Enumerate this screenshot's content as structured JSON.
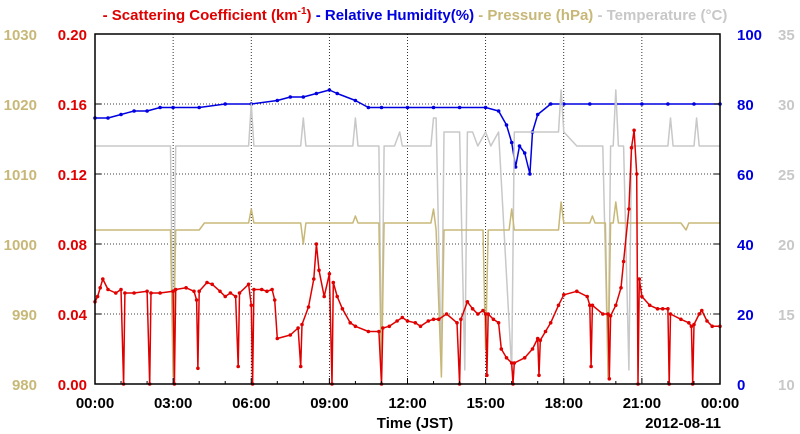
{
  "chart_data": {
    "type": "line",
    "legend": [
      {
        "prefix": "- ",
        "text": "Scattering Coefficient (km",
        "sup": "-1",
        "suffix": ")",
        "color": "#e00000"
      },
      {
        "prefix": " - ",
        "text": "Relative Humidity(%)",
        "color": "#0000e0"
      },
      {
        "prefix": " - ",
        "text": "Pressure (hPa)",
        "color": "#c8b878"
      },
      {
        "prefix": " - ",
        "text": "Temperature (°C)",
        "color": "#c8c8c8"
      }
    ],
    "xlabel": "Time (JST)",
    "date_label": "2012-08-11",
    "x_ticks": [
      "00:00",
      "03:00",
      "06:00",
      "09:00",
      "12:00",
      "15:00",
      "18:00",
      "21:00",
      "00:00"
    ],
    "x_range_hours": [
      0,
      24
    ],
    "grid": true,
    "axes": {
      "pressure": {
        "ticks": [
          "1030",
          "1020",
          "1010",
          "1000",
          "990",
          "980"
        ],
        "range": [
          980,
          1030
        ],
        "color": "#c8b878",
        "side": "left-outer"
      },
      "scattering": {
        "ticks": [
          "0.20",
          "0.16",
          "0.12",
          "0.08",
          "0.04",
          "0.00"
        ],
        "range": [
          0,
          0.2
        ],
        "color": "#e00000",
        "side": "left-inner"
      },
      "humidity": {
        "ticks": [
          "100",
          "80",
          "60",
          "40",
          "20",
          "0"
        ],
        "range": [
          0,
          100
        ],
        "color": "#0000e0",
        "side": "right-inner"
      },
      "temperature": {
        "ticks": [
          "35",
          "30",
          "25",
          "20",
          "15",
          "10"
        ],
        "range": [
          10,
          35
        ],
        "color": "#c8c8c8",
        "side": "right-outer"
      }
    },
    "series": [
      {
        "axis": "humidity",
        "color": "#0000e0",
        "markers": true,
        "points": [
          [
            0,
            76
          ],
          [
            0.5,
            76
          ],
          [
            1,
            77
          ],
          [
            1.5,
            78
          ],
          [
            2,
            78
          ],
          [
            2.5,
            79
          ],
          [
            3,
            79
          ],
          [
            4,
            79
          ],
          [
            5,
            80
          ],
          [
            6,
            80
          ],
          [
            7,
            81
          ],
          [
            7.5,
            82
          ],
          [
            8,
            82
          ],
          [
            8.5,
            83
          ],
          [
            9,
            84
          ],
          [
            9.3,
            83
          ],
          [
            10,
            81
          ],
          [
            10.5,
            79
          ],
          [
            11,
            79
          ],
          [
            12,
            79
          ],
          [
            13,
            79
          ],
          [
            14,
            79
          ],
          [
            15,
            79
          ],
          [
            15.5,
            78
          ],
          [
            15.8,
            74
          ],
          [
            16,
            69
          ],
          [
            16.15,
            62
          ],
          [
            16.3,
            68
          ],
          [
            16.5,
            66
          ],
          [
            16.7,
            60
          ],
          [
            16.8,
            72
          ],
          [
            17,
            77
          ],
          [
            17.5,
            80
          ],
          [
            18,
            80
          ],
          [
            19,
            80
          ],
          [
            20,
            80
          ],
          [
            21,
            80
          ],
          [
            22,
            80
          ],
          [
            23,
            80
          ],
          [
            24,
            80
          ]
        ]
      },
      {
        "axis": "temperature",
        "color": "#c8c8c8",
        "markers": false,
        "points": [
          [
            0,
            27
          ],
          [
            2.9,
            27
          ],
          [
            3,
            11
          ],
          [
            3.1,
            27
          ],
          [
            5.9,
            27
          ],
          [
            6,
            30
          ],
          [
            6.1,
            27
          ],
          [
            7.9,
            27
          ],
          [
            8,
            29
          ],
          [
            8.1,
            27
          ],
          [
            9.9,
            27
          ],
          [
            10,
            29
          ],
          [
            10.1,
            27
          ],
          [
            10.9,
            27
          ],
          [
            11,
            11
          ],
          [
            11.1,
            27
          ],
          [
            11.5,
            27
          ],
          [
            11.7,
            28
          ],
          [
            11.8,
            27
          ],
          [
            12.9,
            27
          ],
          [
            13,
            29
          ],
          [
            13.1,
            29
          ],
          [
            13.3,
            11
          ],
          [
            13.4,
            28
          ],
          [
            14,
            28
          ],
          [
            14.2,
            11
          ],
          [
            14.3,
            28
          ],
          [
            14.5,
            28
          ],
          [
            14.7,
            27
          ],
          [
            15,
            28
          ],
          [
            15.2,
            27
          ],
          [
            15.5,
            28
          ],
          [
            16,
            11
          ],
          [
            16.1,
            28
          ],
          [
            16.5,
            28
          ],
          [
            17,
            28
          ],
          [
            17.5,
            28
          ],
          [
            17.8,
            28
          ],
          [
            17.9,
            31
          ],
          [
            18,
            28
          ],
          [
            18.5,
            27
          ],
          [
            19,
            27
          ],
          [
            19.5,
            27
          ],
          [
            19.7,
            11
          ],
          [
            19.8,
            27
          ],
          [
            19.9,
            27
          ],
          [
            20,
            31
          ],
          [
            20.1,
            27
          ],
          [
            20.3,
            27
          ],
          [
            20.5,
            11
          ],
          [
            20.6,
            27
          ],
          [
            22,
            27
          ],
          [
            22.1,
            29
          ],
          [
            22.2,
            27
          ],
          [
            23,
            27
          ],
          [
            23.1,
            29
          ],
          [
            23.2,
            27
          ],
          [
            24,
            27
          ]
        ]
      },
      {
        "axis": "pressure",
        "color": "#c8b878",
        "markers": false,
        "points": [
          [
            0,
            1002
          ],
          [
            2.9,
            1002
          ],
          [
            3,
            981
          ],
          [
            3.1,
            1002
          ],
          [
            4,
            1002
          ],
          [
            4.2,
            1003
          ],
          [
            5.9,
            1003
          ],
          [
            6,
            1005
          ],
          [
            6.1,
            1003
          ],
          [
            7.9,
            1003
          ],
          [
            8,
            1000
          ],
          [
            8.1,
            1003
          ],
          [
            9.9,
            1003
          ],
          [
            10,
            1004
          ],
          [
            10.1,
            1003
          ],
          [
            10.9,
            1003
          ],
          [
            11,
            981
          ],
          [
            11.1,
            1003
          ],
          [
            12.9,
            1003
          ],
          [
            13,
            1005
          ],
          [
            13.1,
            1002
          ],
          [
            13.3,
            981
          ],
          [
            13.4,
            1002
          ],
          [
            14.9,
            1002
          ],
          [
            15,
            985
          ],
          [
            15.1,
            1002
          ],
          [
            15.9,
            1002
          ],
          [
            16,
            1005
          ],
          [
            16.1,
            1002
          ],
          [
            17.8,
            1002
          ],
          [
            17.9,
            1006
          ],
          [
            18,
            1003
          ],
          [
            19,
            1003
          ],
          [
            19.1,
            1004
          ],
          [
            19.2,
            1003
          ],
          [
            19.6,
            1003
          ],
          [
            19.7,
            981
          ],
          [
            19.8,
            1003
          ],
          [
            19.9,
            1003
          ],
          [
            20,
            1006
          ],
          [
            20.1,
            1003
          ],
          [
            22,
            1003
          ],
          [
            22.2,
            1003
          ],
          [
            22.5,
            1003
          ],
          [
            22.7,
            1002
          ],
          [
            22.8,
            1003
          ],
          [
            24,
            1003
          ]
        ]
      },
      {
        "axis": "scattering",
        "color": "#e00000",
        "markers": true,
        "points": [
          [
            0,
            0.047
          ],
          [
            0.1,
            0.05
          ],
          [
            0.2,
            0.055
          ],
          [
            0.3,
            0.06
          ],
          [
            0.5,
            0.054
          ],
          [
            0.8,
            0.052
          ],
          [
            1,
            0.054
          ],
          [
            1.1,
            0
          ],
          [
            1.15,
            0.052
          ],
          [
            1.5,
            0.052
          ],
          [
            2,
            0.053
          ],
          [
            2.1,
            0
          ],
          [
            2.15,
            0.052
          ],
          [
            2.5,
            0.052
          ],
          [
            3,
            0.053
          ],
          [
            3.05,
            0
          ],
          [
            3.1,
            0.054
          ],
          [
            3.5,
            0.055
          ],
          [
            3.8,
            0.053
          ],
          [
            3.9,
            0.048
          ],
          [
            3.95,
            0.009
          ],
          [
            4,
            0.053
          ],
          [
            4.3,
            0.058
          ],
          [
            4.5,
            0.057
          ],
          [
            4.8,
            0.053
          ],
          [
            5,
            0.05
          ],
          [
            5.2,
            0.052
          ],
          [
            5.4,
            0.05
          ],
          [
            5.5,
            0.01
          ],
          [
            5.55,
            0.052
          ],
          [
            5.9,
            0.057
          ],
          [
            6,
            0.045
          ],
          [
            6.05,
            0
          ],
          [
            6.1,
            0.054
          ],
          [
            6.4,
            0.054
          ],
          [
            6.6,
            0.053
          ],
          [
            6.8,
            0.054
          ],
          [
            6.9,
            0.048
          ],
          [
            7,
            0.026
          ],
          [
            7.5,
            0.028
          ],
          [
            7.8,
            0.032
          ],
          [
            7.9,
            0.01
          ],
          [
            7.95,
            0.034
          ],
          [
            8.2,
            0.044
          ],
          [
            8.4,
            0.06
          ],
          [
            8.5,
            0.08
          ],
          [
            8.6,
            0.065
          ],
          [
            8.8,
            0.05
          ],
          [
            9,
            0.063
          ],
          [
            9.1,
            0
          ],
          [
            9.15,
            0.058
          ],
          [
            9.3,
            0.05
          ],
          [
            9.5,
            0.043
          ],
          [
            9.8,
            0.035
          ],
          [
            10,
            0.033
          ],
          [
            10.5,
            0.03
          ],
          [
            10.9,
            0.03
          ],
          [
            11,
            0
          ],
          [
            11.05,
            0.032
          ],
          [
            11.3,
            0.033
          ],
          [
            11.6,
            0.036
          ],
          [
            11.8,
            0.038
          ],
          [
            12,
            0.036
          ],
          [
            12.3,
            0.035
          ],
          [
            12.5,
            0.033
          ],
          [
            12.8,
            0.036
          ],
          [
            13,
            0.037
          ],
          [
            13.2,
            0.037
          ],
          [
            13.5,
            0.04
          ],
          [
            13.9,
            0.035
          ],
          [
            14,
            0
          ],
          [
            14.05,
            0.037
          ],
          [
            14.3,
            0.047
          ],
          [
            14.5,
            0.043
          ],
          [
            14.7,
            0.04
          ],
          [
            14.9,
            0.042
          ],
          [
            15,
            0.04
          ],
          [
            15.05,
            0.005
          ],
          [
            15.1,
            0.04
          ],
          [
            15.3,
            0.037
          ],
          [
            15.5,
            0.035
          ],
          [
            15.6,
            0.02
          ],
          [
            15.8,
            0.015
          ],
          [
            16,
            0.012
          ],
          [
            16.05,
            0
          ],
          [
            16.1,
            0.012
          ],
          [
            16.5,
            0.015
          ],
          [
            16.8,
            0.02
          ],
          [
            17,
            0.026
          ],
          [
            17.05,
            0.005
          ],
          [
            17.1,
            0.025
          ],
          [
            17.3,
            0.03
          ],
          [
            17.5,
            0.035
          ],
          [
            17.8,
            0.045
          ],
          [
            18,
            0.051
          ],
          [
            18.5,
            0.053
          ],
          [
            18.9,
            0.05
          ],
          [
            19,
            0.045
          ],
          [
            19.05,
            0.01
          ],
          [
            19.1,
            0.045
          ],
          [
            19.5,
            0.04
          ],
          [
            19.7,
            0.04
          ],
          [
            19.75,
            0.003
          ],
          [
            19.8,
            0.039
          ],
          [
            20,
            0.045
          ],
          [
            20.2,
            0.055
          ],
          [
            20.3,
            0.07
          ],
          [
            20.5,
            0.1
          ],
          [
            20.6,
            0.135
          ],
          [
            20.7,
            0.145
          ],
          [
            20.8,
            0.12
          ],
          [
            20.85,
            0
          ],
          [
            20.9,
            0.06
          ],
          [
            21,
            0.05
          ],
          [
            21.3,
            0.045
          ],
          [
            21.6,
            0.043
          ],
          [
            21.8,
            0.043
          ],
          [
            22,
            0.043
          ],
          [
            22.05,
            0
          ],
          [
            22.1,
            0.04
          ],
          [
            22.5,
            0.037
          ],
          [
            22.8,
            0.035
          ],
          [
            22.9,
            0.033
          ],
          [
            22.95,
            0
          ],
          [
            23,
            0.034
          ],
          [
            23.2,
            0.04
          ],
          [
            23.3,
            0.042
          ],
          [
            23.5,
            0.036
          ],
          [
            23.7,
            0.033
          ],
          [
            24,
            0.033
          ]
        ]
      }
    ]
  }
}
